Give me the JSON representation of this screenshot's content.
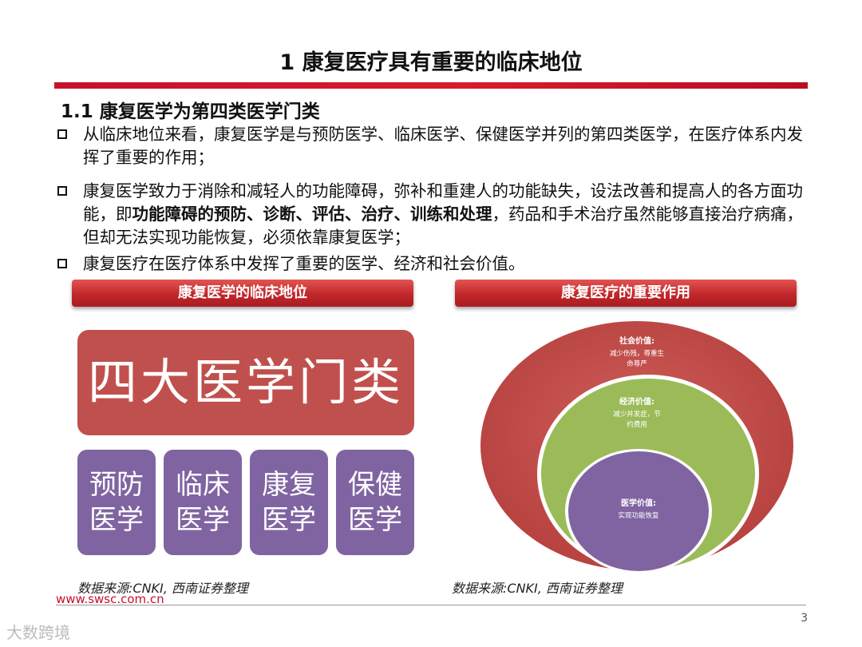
{
  "slide": {
    "title": "1  康复医疗具有重要的临床地位",
    "subtitle": "1.1 康复医学为第四类医学门类",
    "bullets": [
      {
        "text": "从临床地位来看，康复医学是与预防医学、临床医学、保健医学并列的第四类医学，在医疗体系内发挥了重要的作用；"
      },
      {
        "text_before": "康复医学致力于消除和减轻人的功能障碍，弥补和重建人的功能缺失，设法改善和提高人的各方面功能，即",
        "text_bold": "功能障碍的预防、诊断、评估、治疗、训练和处理",
        "text_after": "，药品和手术治疗虽然能够直接治疗病痛，但却无法实现功能恢复，必须依靠康复医学；"
      },
      {
        "text": "康复医疗在医疗体系中发挥了重要的医学、经济和社会价值。"
      }
    ]
  },
  "left_panel": {
    "header": "康复医学的临床地位",
    "main_box": "四大医学门类",
    "boxes": [
      {
        "line1": "预防",
        "line2": "医学"
      },
      {
        "line1": "临床",
        "line2": "医学"
      },
      {
        "line1": "康复",
        "line2": "医学"
      },
      {
        "line1": "保健",
        "line2": "医学"
      }
    ],
    "source": "数据来源:CNKI, 西南证券整理"
  },
  "right_panel": {
    "header": "康复医疗的重要作用",
    "rings": {
      "outer": {
        "label": "社会价值:",
        "desc_line1": "减少伤残，尊重生",
        "desc_line2": "命尊严",
        "color": "#c0504d"
      },
      "middle": {
        "label": "经济价值:",
        "desc_line1": "减少并发症，节",
        "desc_line2": "约费用",
        "color": "#9bbb59"
      },
      "inner": {
        "label": "医学价值:",
        "desc_line1": "实现功能恢复",
        "color": "#8064a2"
      }
    },
    "source": "数据来源:CNKI, 西南证券整理"
  },
  "footer": {
    "url": "www.swsc.com.cn",
    "page_number": "3",
    "watermark": "大数跨境"
  },
  "colors": {
    "accent_red": "#c8102e",
    "box_red": "#c0504d",
    "box_purple": "#8064a2",
    "ring_green": "#9bbb59"
  }
}
